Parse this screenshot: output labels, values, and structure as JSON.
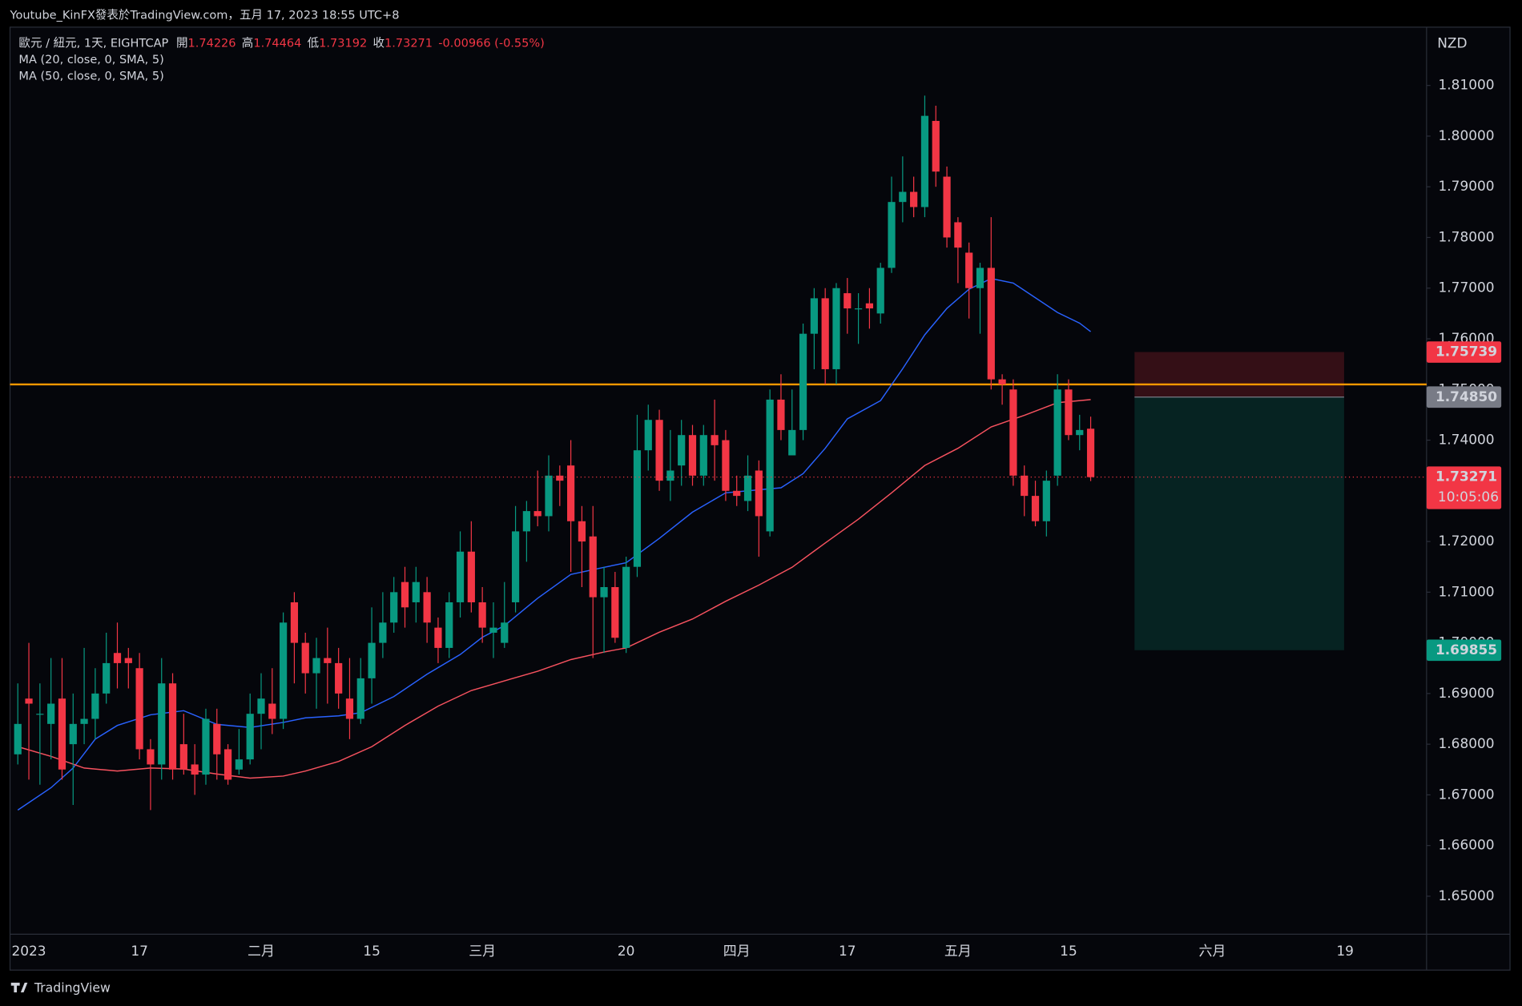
{
  "header": "Youtube_KinFX發表於TradingView.com，五月 17, 2023 18:55 UTC+8",
  "footer": "TradingView",
  "chart_data": {
    "type": "candlestick",
    "title": "歐元 / 紐元, 1天, EIGHTCAP",
    "ohlc_labels": [
      "開",
      "高",
      "低",
      "收"
    ],
    "change": "-0.00966 (-0.55%)",
    "currency": "NZD",
    "categories": [
      null,
      "2023",
      null,
      null,
      null,
      null,
      null,
      null,
      null,
      null,
      null,
      "17",
      null,
      null,
      null,
      null,
      null,
      null,
      null,
      null,
      null,
      null,
      "二月",
      null,
      null,
      null,
      null,
      null,
      null,
      null,
      null,
      null,
      "15",
      null,
      null,
      null,
      null,
      null,
      null,
      null,
      null,
      null,
      "三月",
      null,
      null,
      null,
      null,
      null,
      null,
      null,
      null,
      null,
      null,
      null,
      null,
      "20",
      null,
      null,
      null,
      null,
      null,
      null,
      null,
      null,
      null,
      "四月",
      null,
      null,
      null,
      null,
      null,
      null,
      null,
      null,
      null,
      "17",
      null,
      null,
      null,
      null,
      null,
      null,
      null,
      null,
      null,
      "五月",
      null,
      null,
      null,
      null,
      null,
      null,
      null,
      null,
      null,
      "15",
      null,
      null,
      null,
      null,
      null,
      null,
      null,
      null,
      null,
      null,
      null,
      null,
      "六月",
      null,
      null,
      null,
      null,
      null,
      null,
      null,
      null,
      null,
      null,
      null,
      "19"
    ],
    "open": [
      1.678,
      1.689,
      1.686,
      1.684,
      1.689,
      1.68,
      1.684,
      1.685,
      1.69,
      1.698,
      1.697,
      1.695,
      1.679,
      1.676,
      1.692,
      1.68,
      1.676,
      1.674,
      1.684,
      1.679,
      1.675,
      1.677,
      1.686,
      1.688,
      1.685,
      1.708,
      1.7,
      1.694,
      1.697,
      1.696,
      1.689,
      1.685,
      1.693,
      1.7,
      1.704,
      1.712,
      1.708,
      1.71,
      1.703,
      1.699,
      1.708,
      1.718,
      1.708,
      1.702,
      1.7,
      1.708,
      1.722,
      1.726,
      1.725,
      1.733,
      1.735,
      1.724,
      1.721,
      1.709,
      1.711,
      1.699,
      1.715,
      1.738,
      1.744,
      1.732,
      1.735,
      1.741,
      1.733,
      1.741,
      1.74,
      1.73,
      1.728,
      1.734,
      1.722,
      1.748,
      1.737,
      1.742,
      1.761,
      1.768,
      1.754,
      1.769,
      1.766,
      1.767,
      1.765,
      1.774,
      1.787,
      1.789,
      1.786,
      1.803,
      1.792,
      1.783,
      1.777,
      1.77,
      1.774,
      1.752,
      1.75,
      1.733,
      1.729,
      1.724,
      1.733,
      1.75,
      1.741,
      1.74226,
      null,
      null,
      null,
      null,
      null,
      null,
      null,
      null,
      null,
      null,
      null,
      null,
      null,
      null,
      null,
      null,
      null,
      null,
      null,
      null,
      null,
      null,
      null
    ],
    "high": [
      1.692,
      1.7,
      1.692,
      1.697,
      1.697,
      1.69,
      1.699,
      1.695,
      1.702,
      1.704,
      1.699,
      1.698,
      1.681,
      1.697,
      1.694,
      1.686,
      1.68,
      1.687,
      1.687,
      1.68,
      1.683,
      1.69,
      1.694,
      1.695,
      1.706,
      1.71,
      1.702,
      1.701,
      1.703,
      1.699,
      1.697,
      1.697,
      1.707,
      1.71,
      1.713,
      1.715,
      1.715,
      1.713,
      1.705,
      1.71,
      1.722,
      1.724,
      1.711,
      1.708,
      1.712,
      1.727,
      1.728,
      1.734,
      1.737,
      1.735,
      1.74,
      1.727,
      1.727,
      1.715,
      1.714,
      1.717,
      1.745,
      1.747,
      1.746,
      1.742,
      1.744,
      1.743,
      1.743,
      1.748,
      1.742,
      1.733,
      1.737,
      1.736,
      1.75,
      1.753,
      1.75,
      1.763,
      1.77,
      1.77,
      1.771,
      1.772,
      1.769,
      1.77,
      1.775,
      1.792,
      1.796,
      1.792,
      1.808,
      1.806,
      1.794,
      1.784,
      1.779,
      1.775,
      1.784,
      1.753,
      1.752,
      1.735,
      1.732,
      1.734,
      1.753,
      1.752,
      1.745,
      1.74464,
      null,
      null,
      null,
      null,
      null,
      null,
      null,
      null,
      null,
      null,
      null,
      null,
      null,
      null,
      null,
      null,
      null,
      null,
      null,
      null,
      null,
      null,
      null
    ],
    "low": [
      1.676,
      1.673,
      1.672,
      1.677,
      1.673,
      1.668,
      1.68,
      1.681,
      1.688,
      1.691,
      1.691,
      1.677,
      1.667,
      1.673,
      1.673,
      1.674,
      1.67,
      1.672,
      1.673,
      1.672,
      1.674,
      1.676,
      1.679,
      1.682,
      1.683,
      1.692,
      1.69,
      1.687,
      1.688,
      1.687,
      1.681,
      1.684,
      1.688,
      1.697,
      1.702,
      1.703,
      1.704,
      1.7,
      1.696,
      1.697,
      1.705,
      1.706,
      1.7,
      1.697,
      1.699,
      1.706,
      1.716,
      1.723,
      1.722,
      1.727,
      1.714,
      1.711,
      1.697,
      1.698,
      1.7,
      1.698,
      1.713,
      1.734,
      1.73,
      1.728,
      1.731,
      1.731,
      1.731,
      1.732,
      1.728,
      1.727,
      1.726,
      1.717,
      1.721,
      1.74,
      1.737,
      1.74,
      1.754,
      1.751,
      1.751,
      1.761,
      1.759,
      1.762,
      1.763,
      1.773,
      1.783,
      1.784,
      1.784,
      1.79,
      1.778,
      1.771,
      1.764,
      1.761,
      1.75,
      1.747,
      1.731,
      1.725,
      1.723,
      1.721,
      1.731,
      1.74,
      1.738,
      1.73192,
      null,
      null,
      null,
      null,
      null,
      null,
      null,
      null,
      null,
      null,
      null,
      null,
      null,
      null,
      null,
      null,
      null,
      null,
      null,
      null,
      null,
      null,
      null
    ],
    "close": [
      1.684,
      1.688,
      1.686,
      1.688,
      1.675,
      1.684,
      1.685,
      1.69,
      1.696,
      1.696,
      1.696,
      1.679,
      1.676,
      1.692,
      1.675,
      1.675,
      1.674,
      1.685,
      1.678,
      1.673,
      1.677,
      1.686,
      1.689,
      1.685,
      1.704,
      1.7,
      1.694,
      1.697,
      1.696,
      1.69,
      1.685,
      1.693,
      1.7,
      1.704,
      1.71,
      1.707,
      1.712,
      1.704,
      1.699,
      1.708,
      1.718,
      1.708,
      1.703,
      1.703,
      1.704,
      1.722,
      1.726,
      1.725,
      1.733,
      1.732,
      1.724,
      1.72,
      1.709,
      1.711,
      1.701,
      1.715,
      1.738,
      1.744,
      1.732,
      1.734,
      1.741,
      1.733,
      1.741,
      1.739,
      1.73,
      1.729,
      1.733,
      1.725,
      1.748,
      1.742,
      1.742,
      1.761,
      1.768,
      1.754,
      1.77,
      1.766,
      1.766,
      1.766,
      1.774,
      1.787,
      1.789,
      1.786,
      1.804,
      1.793,
      1.78,
      1.778,
      1.77,
      1.774,
      1.752,
      1.751,
      1.733,
      1.729,
      1.724,
      1.732,
      1.75,
      1.741,
      1.742,
      1.73271,
      null,
      null,
      null,
      null,
      null,
      null,
      null,
      null,
      null,
      null,
      null,
      null,
      null,
      null,
      null,
      null,
      null,
      null,
      null,
      null,
      null,
      null,
      null
    ],
    "up_color": "#089981",
    "down_color": "#f23645",
    "lines": [
      {
        "name": "MA (20, close, 0, SMA, 5)",
        "color": "#2962ff",
        "x": [
          0,
          3,
          5,
          7,
          9,
          12,
          15,
          18,
          21,
          24,
          26,
          29,
          31,
          34,
          37,
          40,
          42,
          44,
          47,
          50,
          53,
          55,
          58,
          61,
          64,
          67,
          69,
          71,
          73,
          75,
          78,
          80,
          82,
          84,
          86,
          88,
          90,
          92,
          94,
          96,
          97
        ],
        "values": [
          1.667,
          1.6714,
          1.6753,
          1.681,
          1.6837,
          1.6858,
          1.6866,
          1.6839,
          1.6833,
          1.6843,
          1.6852,
          1.6856,
          1.6862,
          1.6894,
          1.6938,
          1.6977,
          1.7011,
          1.7034,
          1.7088,
          1.7135,
          1.7149,
          1.7158,
          1.7206,
          1.7258,
          1.7296,
          1.7302,
          1.7306,
          1.7334,
          1.7384,
          1.7442,
          1.7478,
          1.7541,
          1.7608,
          1.766,
          1.7698,
          1.7719,
          1.771,
          1.7681,
          1.7652,
          1.7631,
          1.7614
        ]
      },
      {
        "name": "MA (50, close, 0, SMA, 5)",
        "color": "#f7525f",
        "x": [
          0,
          3,
          6,
          9,
          12,
          15,
          18,
          21,
          24,
          26,
          29,
          32,
          35,
          38,
          41,
          44,
          47,
          50,
          53,
          55,
          58,
          61,
          64,
          67,
          70,
          73,
          76,
          79,
          82,
          85,
          88,
          91,
          94,
          97
        ],
        "values": [
          1.6795,
          1.6776,
          1.6753,
          1.6747,
          1.6753,
          1.6751,
          1.6741,
          1.6733,
          1.6737,
          1.6747,
          1.6766,
          1.6795,
          1.6837,
          1.6875,
          1.6906,
          1.6925,
          1.6944,
          1.6967,
          1.6982,
          1.699,
          1.7021,
          1.7047,
          1.7082,
          1.7114,
          1.7149,
          1.7197,
          1.7244,
          1.7296,
          1.735,
          1.7384,
          1.7426,
          1.7449,
          1.7474,
          1.748
        ]
      }
    ],
    "hline": {
      "value": 1.751,
      "color": "#ff9800"
    },
    "position": {
      "stop": 1.75739,
      "entry": {
        "value": 1.7485,
        "label": "1.74850"
      },
      "target": 1.69855
    },
    "countdown": "10:05:06",
    "ylim": [
      1.6425,
      1.8215
    ],
    "yticks": [
      {
        "value": 1.65,
        "label": "1.65000"
      },
      {
        "value": 1.66,
        "label": "1.66000"
      },
      {
        "value": 1.67,
        "label": "1.67000"
      },
      {
        "value": 1.68,
        "label": "1.68000"
      },
      {
        "value": 1.69,
        "label": "1.69000"
      },
      {
        "value": 1.7,
        "label": "1.70000"
      },
      {
        "value": 1.71,
        "label": "1.71000"
      },
      {
        "value": 1.72,
        "label": "1.72000"
      },
      {
        "value": 1.73,
        "label": "1.73000"
      },
      {
        "value": 1.74,
        "label": "1.74000"
      },
      {
        "value": 1.75,
        "label": "1.75000"
      },
      {
        "value": 1.76,
        "label": "1.76000"
      },
      {
        "value": 1.77,
        "label": "1.77000"
      },
      {
        "value": 1.78,
        "label": "1.78000"
      },
      {
        "value": 1.79,
        "label": "1.79000"
      },
      {
        "value": 1.8,
        "label": "1.80000"
      },
      {
        "value": 1.81,
        "label": "1.81000"
      }
    ],
    "grid": false
  }
}
